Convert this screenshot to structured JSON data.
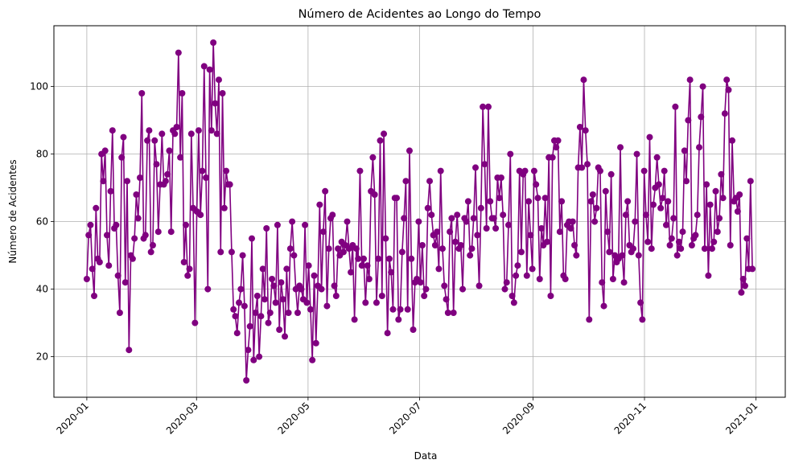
{
  "chart_data": {
    "type": "line",
    "title": "Número de Acidentes ao Longo do Tempo",
    "xlabel": "Data",
    "ylabel": "Número de Acidentes",
    "x_start": "2020-01-01",
    "x_end": "2020-12-30",
    "xlim": [
      "2019-12-14",
      "2021-01-17"
    ],
    "ylim": [
      8,
      118
    ],
    "x_ticks": [
      "2020-01-01",
      "2020-03-01",
      "2020-05-01",
      "2020-07-01",
      "2020-09-01",
      "2020-11-01",
      "2021-01-01"
    ],
    "x_tick_labels": [
      "2020-01",
      "2020-03",
      "2020-05",
      "2020-07",
      "2020-09",
      "2020-11",
      "2021-01"
    ],
    "y_ticks": [
      20,
      40,
      60,
      80,
      100
    ],
    "y_tick_labels": [
      "20",
      "40",
      "60",
      "80",
      "100"
    ],
    "grid": true,
    "marker": "circle",
    "color": "#800080",
    "series": [
      {
        "values": [
          43,
          56,
          59,
          46,
          38,
          64,
          49,
          48,
          80,
          72,
          81,
          56,
          47,
          69,
          87,
          58,
          59,
          44,
          33,
          79,
          85,
          42,
          72,
          22,
          50,
          49,
          55,
          68,
          61,
          73,
          98,
          55,
          56,
          84,
          87,
          51,
          53,
          84,
          77,
          57,
          71,
          86,
          71,
          72,
          74,
          81,
          57,
          87,
          86,
          88,
          110,
          79,
          98,
          48,
          59,
          44,
          46,
          86,
          64,
          30,
          63,
          87,
          62,
          75,
          106,
          73,
          40,
          105,
          87,
          113,
          95,
          86,
          102,
          51,
          98,
          64,
          75,
          71,
          71,
          51,
          34,
          32,
          27,
          36,
          40,
          50,
          35,
          13,
          22,
          29,
          55,
          19,
          33,
          38,
          20,
          32,
          46,
          37,
          58,
          30,
          33,
          43,
          41,
          36,
          59,
          28,
          42,
          37,
          26,
          46,
          33,
          52,
          60,
          50,
          40,
          33,
          41,
          40,
          37,
          59,
          36,
          47,
          34,
          19,
          44,
          24,
          41,
          65,
          40,
          57,
          69,
          35,
          52,
          61,
          62,
          41,
          38,
          52,
          50,
          54,
          51,
          53,
          60,
          52,
          45,
          53,
          31,
          52,
          49,
          75,
          47,
          49,
          36,
          47,
          43,
          69,
          79,
          68,
          36,
          49,
          84,
          38,
          86,
          55,
          27,
          49,
          45,
          34,
          67,
          67,
          31,
          34,
          51,
          61,
          72,
          34,
          81,
          49,
          28,
          42,
          43,
          60,
          42,
          53,
          38,
          40,
          64,
          72,
          62,
          56,
          53,
          57,
          46,
          75,
          52,
          41,
          37,
          33,
          57,
          61,
          33,
          54,
          62,
          52,
          53,
          40,
          61,
          60,
          66,
          50,
          52,
          61,
          76,
          56,
          41,
          64,
          94,
          77,
          58,
          94,
          66,
          61,
          61,
          58,
          73,
          67,
          73,
          62,
          40,
          42,
          59,
          80,
          38,
          36,
          44,
          47,
          75,
          51,
          74,
          75,
          44,
          66,
          56,
          46,
          75,
          71,
          67,
          43,
          58,
          53,
          67,
          54,
          79,
          38,
          79,
          84,
          82,
          84,
          57,
          66,
          44,
          43,
          59,
          60,
          58,
          60,
          53,
          50,
          76,
          88,
          76,
          102,
          87,
          77,
          31,
          66,
          68,
          60,
          64,
          76,
          75,
          42,
          35,
          69,
          57,
          51,
          74,
          43,
          50,
          48,
          49,
          82,
          50,
          42,
          62,
          66,
          53,
          51,
          52,
          60,
          80,
          50,
          36,
          31,
          75,
          62,
          54,
          85,
          52,
          65,
          70,
          79,
          71,
          64,
          67,
          75,
          59,
          66,
          53,
          55,
          61,
          94,
          50,
          54,
          52,
          57,
          81,
          72,
          90,
          102,
          53,
          55,
          56,
          62,
          82,
          91,
          100,
          52,
          71,
          44,
          65,
          52,
          54,
          69,
          57,
          61,
          74,
          67,
          92,
          102,
          99,
          53,
          84,
          66,
          67,
          63,
          68,
          39,
          43,
          41,
          55,
          46,
          72,
          46
        ]
      }
    ]
  }
}
